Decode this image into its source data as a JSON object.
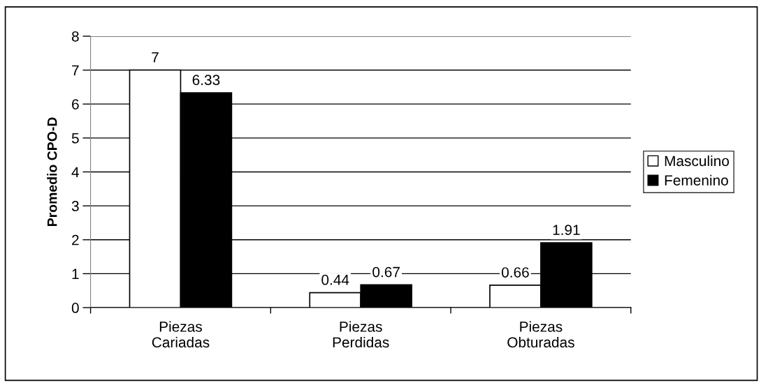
{
  "chart_data": {
    "type": "bar",
    "ylabel": "Promedio CPO-D",
    "categories": [
      "Piezas Cariadas",
      "Piezas Perdidas",
      "Piezas Obturadas"
    ],
    "series": [
      {
        "name": "Masculino",
        "color": "#ffffff",
        "values": [
          7,
          0.44,
          0.66
        ]
      },
      {
        "name": "Femenino",
        "color": "#000000",
        "values": [
          6.33,
          0.67,
          1.91
        ]
      }
    ],
    "ylim": [
      0,
      8
    ],
    "yticks": [
      0,
      1,
      2,
      3,
      4,
      5,
      6,
      7,
      8
    ],
    "grid": "y",
    "legend": "right",
    "data_labels": true
  }
}
